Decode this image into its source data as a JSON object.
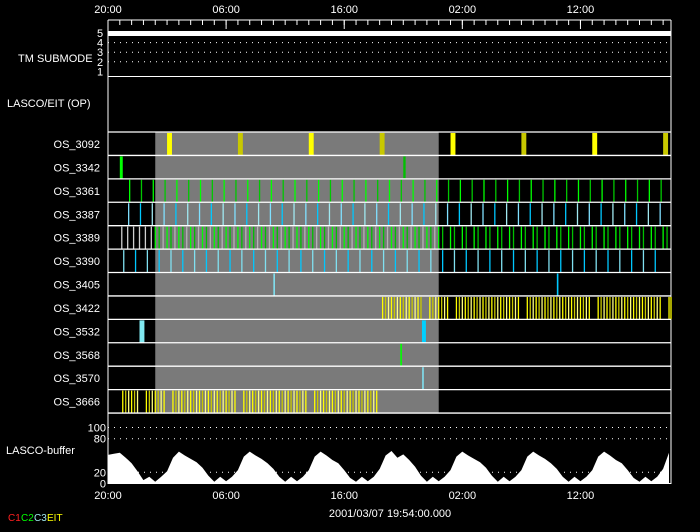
{
  "chart_data": {
    "type": "timeline",
    "x_range": {
      "start": "03/07 20:00",
      "end": "03/09 19:40"
    },
    "time_ticks": [
      {
        "label": "20:00",
        "t": "03/07 20:00"
      },
      {
        "label": "06:00",
        "t": "03/08 06:00"
      },
      {
        "label": "16:00",
        "t": "03/08 16:00"
      },
      {
        "label": "02:00",
        "t": "03/09 02:00"
      },
      {
        "label": "12:00",
        "t": "03/09 12:00"
      }
    ],
    "minor_tick_every_min": 60,
    "footer_time": "2001/03/07 19:54:00.000",
    "legend": [
      {
        "label": "C1",
        "color": "#ff2020"
      },
      {
        "label": "C2",
        "color": "#00ff00"
      },
      {
        "label": "C3",
        "color": "#a0e8f0"
      },
      {
        "label": "EIT",
        "color": "#ffff00"
      }
    ],
    "tm_submode": {
      "label": "TM SUBMODE",
      "levels": [
        "5",
        "4",
        "3",
        "2",
        "1"
      ],
      "value": 5
    },
    "lasco_eit_op": {
      "label": "LASCO/EIT (OP)"
    },
    "highlight": {
      "start": "03/08 00:00",
      "end": "03/09 00:00",
      "color": "#7a7a7a"
    },
    "rows": [
      {
        "label": "OS_3092",
        "events": [
          {
            "t": "03/08 01:00",
            "duration_min": 25,
            "color": "#ffff00"
          },
          {
            "t": "03/08 07:00",
            "duration_min": 25,
            "color": "#c8c800"
          },
          {
            "t": "03/08 13:00",
            "duration_min": 25,
            "color": "#ffff00"
          },
          {
            "t": "03/08 19:00",
            "duration_min": 25,
            "color": "#c8c800"
          },
          {
            "t": "03/09 01:00",
            "duration_min": 25,
            "color": "#ffff00"
          },
          {
            "t": "03/09 07:00",
            "duration_min": 25,
            "color": "#c8c800"
          },
          {
            "t": "03/09 13:00",
            "duration_min": 25,
            "color": "#ffff00"
          },
          {
            "t": "03/09 19:00",
            "duration_min": 25,
            "color": "#c8c800"
          }
        ]
      },
      {
        "label": "OS_3342",
        "events": [
          {
            "t": "03/07 21:00",
            "duration_min": 15,
            "color": "#00ff00"
          },
          {
            "t": "03/08 21:00",
            "duration_min": 12,
            "color": "#00c000"
          }
        ]
      },
      {
        "label": "OS_3361",
        "periodic": [
          {
            "start": "03/07 21:50",
            "end": "03/09 19:40",
            "every_min": 60,
            "colors": [
              "#00ff00",
              "#00c800"
            ]
          }
        ]
      },
      {
        "label": "OS_3387",
        "periodic": [
          {
            "start": "03/07 21:45",
            "end": "03/09 19:40",
            "every_min": 60,
            "colors": [
              "#80e0ff",
              "#00c8ff",
              "#a0e8f0"
            ]
          }
        ]
      },
      {
        "label": "OS_3389",
        "periodic": [
          {
            "start": "03/07 21:10",
            "end": "03/07 23:50",
            "every_min": 30,
            "colors": [
              "#d0d0d0"
            ]
          },
          {
            "start": "03/08 00:40",
            "end": "03/08 23:40",
            "every_min": 60,
            "colors": [
              "#b4b4b4"
            ]
          },
          {
            "start": "03/08 00:00",
            "end": "03/09 19:00",
            "every_min": 60,
            "colors": [
              "#00ff00"
            ]
          },
          {
            "start": "03/08 00:20",
            "end": "03/09 19:20",
            "every_min": 60,
            "colors": [
              "#00c000"
            ]
          }
        ]
      },
      {
        "label": "OS_3390",
        "periodic": [
          {
            "start": "03/07 21:20",
            "end": "03/09 18:20",
            "every_min": 60,
            "colors": [
              "#80e0f0",
              "#00c8ff"
            ]
          }
        ]
      },
      {
        "label": "OS_3405",
        "events": [
          {
            "t": "03/08 10:00",
            "duration_min": 0,
            "color": "#80e0f0"
          },
          {
            "t": "03/09 10:00",
            "duration_min": 0,
            "color": "#00c8ff"
          }
        ]
      },
      {
        "label": "OS_3422",
        "periodic": [
          {
            "start": "03/08 19:15",
            "end": "03/08 22:30",
            "every_min": 15,
            "colors": [
              "#ffff00",
              "#c8c800",
              "#ffff80"
            ]
          },
          {
            "start": "03/08 23:15",
            "end": "03/09 00:45",
            "every_min": 15,
            "colors": [
              "#ffff00",
              "#c8c800",
              "#ffff80"
            ]
          },
          {
            "start": "03/09 01:30",
            "end": "03/09 06:45",
            "every_min": 15,
            "colors": [
              "#ffff00",
              "#c8c800",
              "#ffff80"
            ]
          },
          {
            "start": "03/09 07:30",
            "end": "03/09 12:45",
            "every_min": 15,
            "colors": [
              "#ffff00",
              "#c8c800",
              "#ffff80"
            ]
          },
          {
            "start": "03/09 13:30",
            "end": "03/09 18:45",
            "every_min": 15,
            "colors": [
              "#ffff00",
              "#c8c800",
              "#ffff80"
            ]
          },
          {
            "start": "03/09 19:30",
            "end": "03/09 19:40",
            "every_min": 10,
            "colors": [
              "#ffff00"
            ]
          }
        ]
      },
      {
        "label": "OS_3532",
        "events": [
          {
            "t": "03/07 22:40",
            "duration_min": 25,
            "color": "#80e8f0"
          },
          {
            "t": "03/08 22:35",
            "duration_min": 20,
            "color": "#00d0ff"
          }
        ]
      },
      {
        "label": "OS_3568",
        "events": [
          {
            "t": "03/08 20:45",
            "duration_min": 0,
            "color": "#00ff00"
          }
        ]
      },
      {
        "label": "OS_3570",
        "events": [
          {
            "t": "03/08 22:36",
            "duration_min": 0,
            "color": "#80e0f0"
          }
        ]
      },
      {
        "label": "OS_3666",
        "periodic": [
          {
            "start": "03/07 21:15",
            "end": "03/07 22:30",
            "every_min": 15,
            "colors": [
              "#ffff00",
              "#c8c800",
              "#ffff80"
            ]
          },
          {
            "start": "03/07 23:15",
            "end": "03/08 00:45",
            "every_min": 15,
            "colors": [
              "#ffff00",
              "#c8c800",
              "#ffff80"
            ]
          },
          {
            "start": "03/08 01:30",
            "end": "03/08 06:45",
            "every_min": 15,
            "colors": [
              "#ffff00",
              "#c8c800",
              "#ffff80"
            ]
          },
          {
            "start": "03/08 07:30",
            "end": "03/08 12:45",
            "every_min": 15,
            "colors": [
              "#ffff00",
              "#c8c800",
              "#ffff80"
            ]
          },
          {
            "start": "03/08 13:30",
            "end": "03/08 18:45",
            "every_min": 15,
            "colors": [
              "#ffff00",
              "#c8c800",
              "#ffff80"
            ]
          }
        ]
      }
    ],
    "buffer": {
      "label": "LASCO-buffer",
      "y_ticks": [
        "100",
        "80",
        "20",
        "0"
      ],
      "grid_at": [
        100,
        80,
        20
      ],
      "ylim": [
        0,
        100
      ],
      "start": "03/07 20:00",
      "step_min": 30,
      "values": [
        51,
        53,
        55,
        46,
        36,
        22,
        6,
        12,
        3,
        12,
        22,
        46,
        57,
        50,
        44,
        38,
        28,
        14,
        3,
        12,
        4,
        12,
        24,
        48,
        57,
        50,
        44,
        36,
        26,
        12,
        3,
        12,
        4,
        12,
        24,
        48,
        57,
        50,
        42,
        36,
        24,
        10,
        3,
        12,
        4,
        12,
        26,
        50,
        58,
        46,
        52,
        42,
        30,
        14,
        3,
        12,
        4,
        12,
        24,
        48,
        57,
        50,
        44,
        38,
        28,
        14,
        3,
        12,
        4,
        12,
        24,
        48,
        57,
        50,
        44,
        36,
        26,
        12,
        3,
        12,
        4,
        12,
        24,
        48,
        57,
        50,
        42,
        36,
        24,
        10,
        3,
        12,
        4,
        12,
        26,
        55
      ],
      "color": "#ffffff"
    }
  }
}
